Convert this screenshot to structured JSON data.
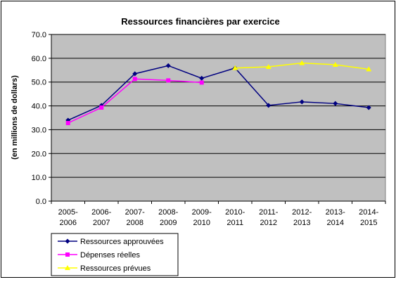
{
  "chart_data": {
    "type": "line",
    "title": "Ressources financières par exercice",
    "xlabel": "",
    "ylabel": "(en millions de dollars)",
    "ylim": [
      0,
      70
    ],
    "yticks": [
      "0.0",
      "10.0",
      "20.0",
      "30.0",
      "40.0",
      "50.0",
      "60.0",
      "70.0"
    ],
    "grid": "horizontal",
    "legend_position": "bottom-left",
    "plot_background": "#C0C0C0",
    "categories": [
      [
        "2005-",
        "2006"
      ],
      [
        "2006-",
        "2007"
      ],
      [
        "2007-",
        "2008"
      ],
      [
        "2008-",
        "2009"
      ],
      [
        "2009-",
        "2010"
      ],
      [
        "2010-",
        "2011"
      ],
      [
        "2011-",
        "2012"
      ],
      [
        "2012-",
        "2013"
      ],
      [
        "2013-",
        "2014"
      ],
      [
        "2014-",
        "2015"
      ]
    ],
    "series": [
      {
        "name": "Ressources approuvées",
        "color": "#000080",
        "marker": "diamond",
        "values": [
          34.0,
          40.2,
          53.5,
          56.9,
          51.6,
          55.9,
          40.2,
          41.7,
          41.0,
          39.3
        ]
      },
      {
        "name": "Dépenses réelles",
        "color": "#FF00FF",
        "marker": "square",
        "values": [
          32.8,
          39.3,
          51.3,
          50.7,
          49.8,
          null,
          null,
          null,
          null,
          null
        ]
      },
      {
        "name": "Ressources prévues",
        "color": "#FFFF00",
        "marker": "triangle",
        "values": [
          null,
          null,
          null,
          null,
          null,
          55.9,
          56.4,
          58.0,
          57.3,
          55.4
        ]
      }
    ]
  }
}
